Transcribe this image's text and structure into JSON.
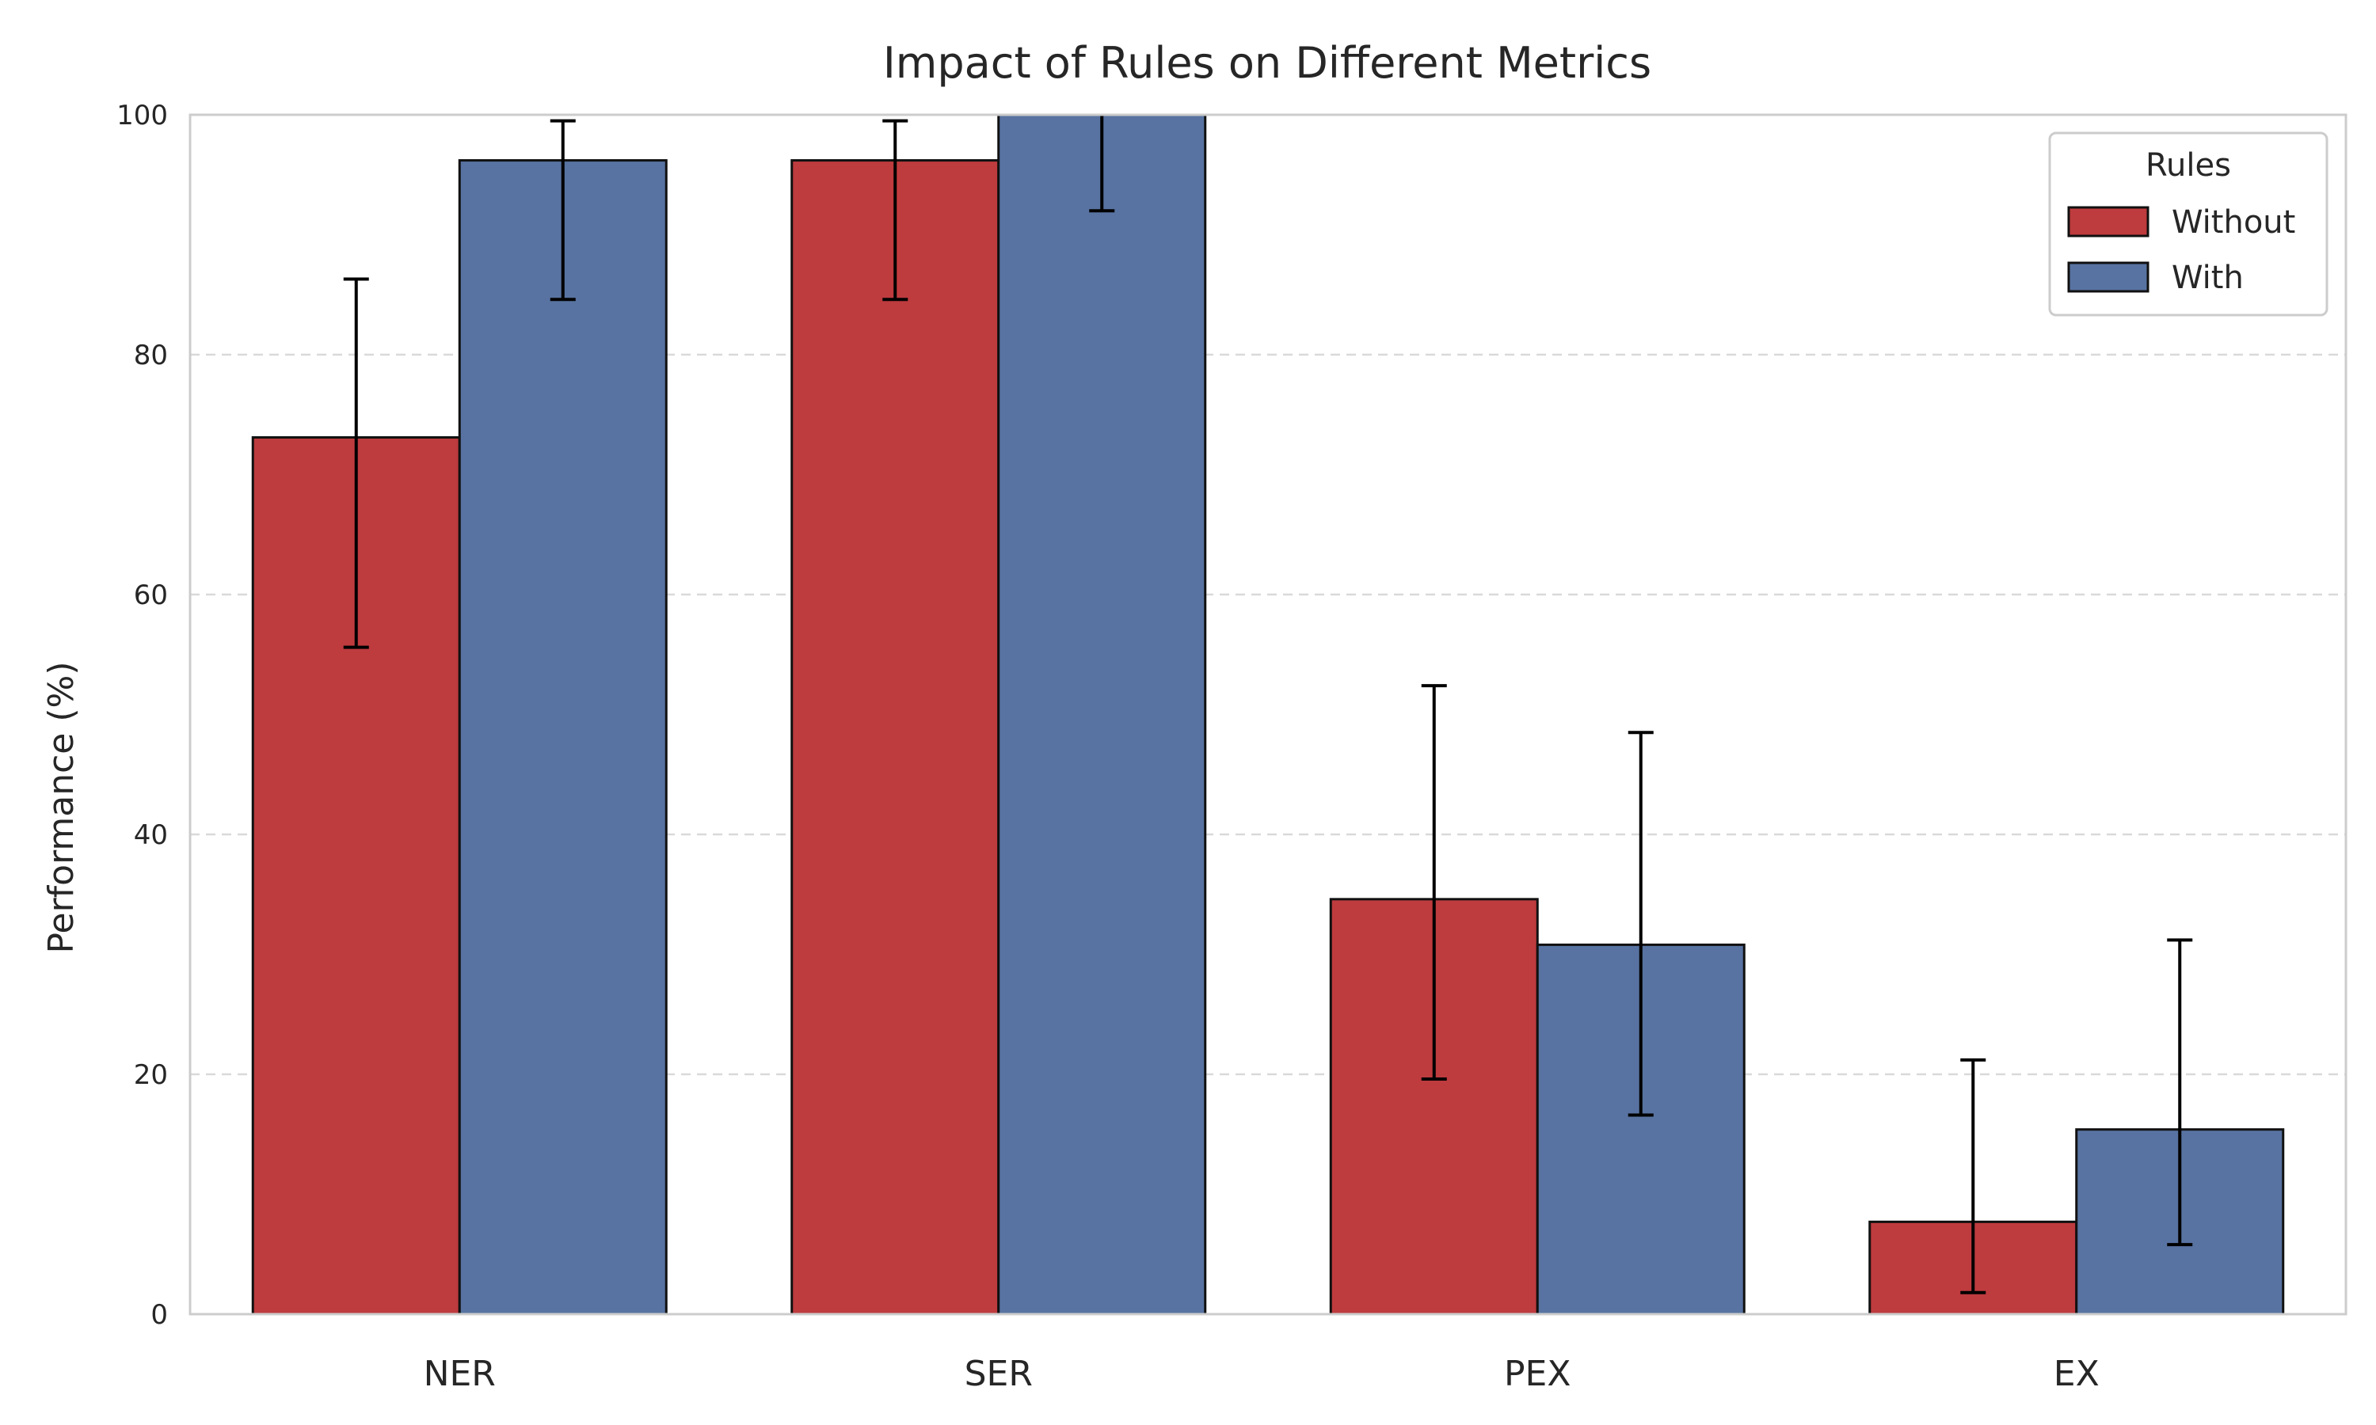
{
  "chart_data": {
    "type": "bar",
    "title": "Impact of Rules on Different Metrics",
    "xlabel": "",
    "ylabel": "Performance (%)",
    "ylim": [
      0,
      100
    ],
    "yticks": [
      0,
      20,
      40,
      60,
      80,
      100
    ],
    "categories": [
      "NER",
      "SER",
      "PEX",
      "EX"
    ],
    "series": [
      {
        "name": "Without",
        "color": "#BE3B3E",
        "values": [
          73.1,
          96.2,
          34.6,
          7.7
        ],
        "err_low": [
          55.6,
          84.6,
          19.6,
          1.8
        ],
        "err_high": [
          86.3,
          99.5,
          52.4,
          21.2
        ]
      },
      {
        "name": "With",
        "color": "#5873A1",
        "values": [
          96.2,
          100.0,
          30.8,
          15.4
        ],
        "err_low": [
          84.6,
          92.0,
          16.6,
          5.8
        ],
        "err_high": [
          99.5,
          100.0,
          48.5,
          31.2
        ]
      }
    ],
    "grid": "y-dashed",
    "legend": {
      "title": "Rules",
      "position": "top-right"
    }
  }
}
